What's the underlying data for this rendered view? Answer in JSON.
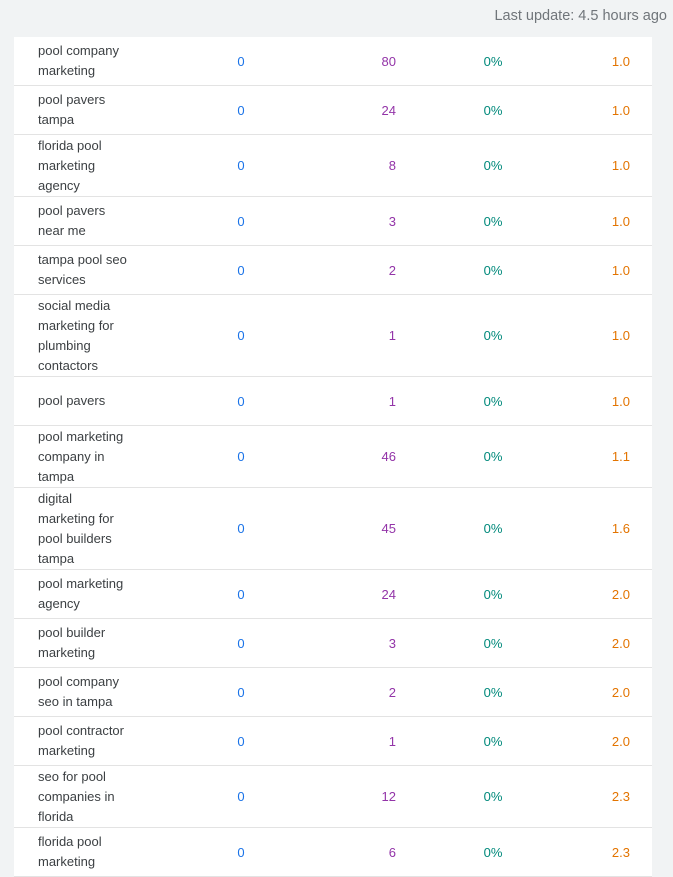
{
  "header": {
    "last_update": "Last update: 4.5 hours ago"
  },
  "table": {
    "rows": [
      [
        "pool company marketing",
        0,
        80,
        "0%",
        "1.0"
      ],
      [
        "pool pavers tampa",
        0,
        24,
        "0%",
        "1.0"
      ],
      [
        "florida pool marketing agency",
        0,
        8,
        "0%",
        "1.0"
      ],
      [
        "pool pavers near me",
        0,
        3,
        "0%",
        "1.0"
      ],
      [
        "tampa pool seo services",
        0,
        2,
        "0%",
        "1.0"
      ],
      [
        "social media marketing for plumbing contactors",
        0,
        1,
        "0%",
        "1.0"
      ],
      [
        "pool pavers",
        0,
        1,
        "0%",
        "1.0"
      ],
      [
        "pool marketing company in tampa",
        0,
        46,
        "0%",
        "1.1"
      ],
      [
        "digital marketing for pool builders tampa",
        0,
        45,
        "0%",
        "1.6"
      ],
      [
        "pool marketing agency",
        0,
        24,
        "0%",
        "2.0"
      ],
      [
        "pool builder marketing",
        0,
        3,
        "0%",
        "2.0"
      ],
      [
        "pool company seo in tampa",
        0,
        2,
        "0%",
        "2.0"
      ],
      [
        "pool contractor marketing",
        0,
        1,
        "0%",
        "2.0"
      ],
      [
        "seo for pool companies in florida",
        0,
        12,
        "0%",
        "2.3"
      ],
      [
        "florida pool marketing",
        0,
        6,
        "0%",
        "2.3"
      ]
    ]
  }
}
